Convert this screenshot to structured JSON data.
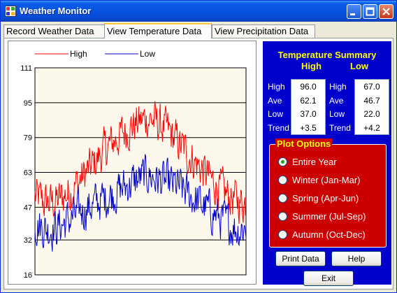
{
  "window": {
    "title": "Weather Monitor"
  },
  "tabs": [
    {
      "label": "Record Weather Data"
    },
    {
      "label": "View Temperature Data"
    },
    {
      "label": "View Precipitation Data"
    }
  ],
  "chart_data": {
    "type": "line",
    "legend": [
      "High",
      "Low"
    ],
    "legend_position": "top",
    "yticks": [
      111,
      95,
      79,
      63,
      47,
      32,
      16
    ],
    "ylim": [
      16,
      111
    ],
    "xlim": [
      1,
      365
    ],
    "grid": "horizontal",
    "series": [
      {
        "name": "High",
        "color": "#ff0000",
        "knots": [
          [
            1,
            52
          ],
          [
            20,
            49
          ],
          [
            40,
            50
          ],
          [
            60,
            54
          ],
          [
            80,
            60
          ],
          [
            100,
            66
          ],
          [
            120,
            73
          ],
          [
            140,
            78
          ],
          [
            160,
            83
          ],
          [
            180,
            86
          ],
          [
            195,
            88
          ],
          [
            210,
            86
          ],
          [
            230,
            82
          ],
          [
            250,
            76
          ],
          [
            270,
            70
          ],
          [
            290,
            64
          ],
          [
            310,
            58
          ],
          [
            330,
            53
          ],
          [
            350,
            50
          ],
          [
            365,
            49
          ]
        ]
      },
      {
        "name": "Low",
        "color": "#0000cc",
        "knots": [
          [
            1,
            40
          ],
          [
            20,
            37
          ],
          [
            40,
            38
          ],
          [
            60,
            41
          ],
          [
            80,
            45
          ],
          [
            100,
            48
          ],
          [
            120,
            51
          ],
          [
            140,
            54
          ],
          [
            160,
            57
          ],
          [
            180,
            60
          ],
          [
            195,
            62
          ],
          [
            210,
            60
          ],
          [
            230,
            58
          ],
          [
            250,
            56
          ],
          [
            270,
            52
          ],
          [
            290,
            48
          ],
          [
            310,
            44
          ],
          [
            330,
            40
          ],
          [
            350,
            37
          ],
          [
            365,
            38
          ]
        ]
      }
    ]
  },
  "summary": {
    "title": "Temperature Summary",
    "high_header": "High",
    "low_header": "Low",
    "rows": [
      {
        "label": "High",
        "high": "96.0",
        "label2": "High",
        "low": "67.0"
      },
      {
        "label": "Ave",
        "high": "62.1",
        "label2": "Ave",
        "low": "46.7"
      },
      {
        "label": "Low",
        "high": "37.0",
        "label2": "Low",
        "low": "22.0"
      },
      {
        "label": "Trend",
        "high": "+3.5",
        "label2": "Trend",
        "low": "+4.2"
      }
    ]
  },
  "plot_options": {
    "title": "Plot Options",
    "selected": 0,
    "options": [
      {
        "label": "Entire Year"
      },
      {
        "label": "Winter (Jan-Mar)"
      },
      {
        "label": "Spring (Apr-Jun)"
      },
      {
        "label": "Summer (Jul-Sep)"
      },
      {
        "label": "Autumn (Oct-Dec)"
      }
    ]
  },
  "buttons": {
    "print": "Print Data",
    "help": "Help",
    "exit": "Exit"
  },
  "colors": {
    "summary_bg": "#0000cc",
    "options_bg": "#cc0000",
    "accent_text": "#ffff00",
    "plot_bg": "#fdf8ec"
  }
}
